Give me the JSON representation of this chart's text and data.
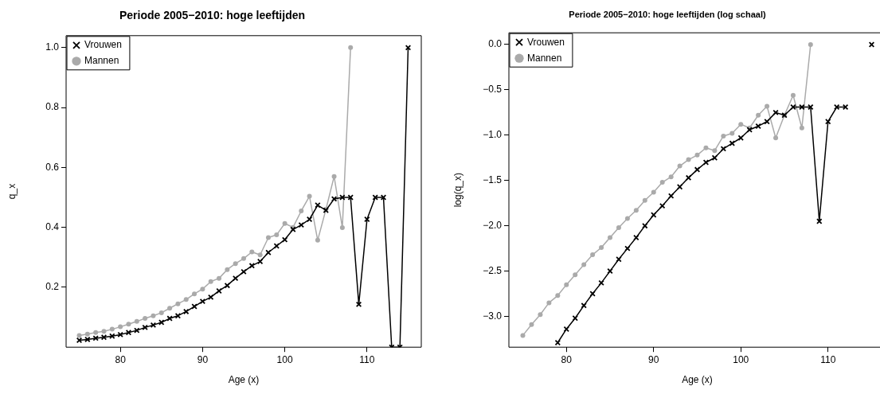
{
  "chart_data": [
    {
      "type": "line",
      "title": "Periode 2005−2010: hoge leeftijden",
      "xlabel": "Age (x)",
      "ylabel": "q_x",
      "xlim": [
        73.4,
        116.6
      ],
      "xticks": [
        80,
        90,
        100,
        110
      ],
      "ylim": [
        0,
        1.04
      ],
      "yticks": [
        0.2,
        0.4,
        0.6,
        0.8,
        {
          "value": 1,
          "label": "1.0"
        }
      ],
      "grid": false,
      "legend": "top left",
      "series": [
        {
          "name": "Mannen",
          "color": "#aaaaaa",
          "marker": "circle",
          "x": [
            75,
            76,
            77,
            78,
            79,
            80,
            81,
            82,
            83,
            84,
            85,
            86,
            87,
            88,
            89,
            90,
            91,
            92,
            93,
            94,
            95,
            96,
            97,
            98,
            99,
            100,
            101,
            102,
            103,
            104,
            105,
            106,
            107,
            108
          ],
          "values": [
            0.039,
            0.044,
            0.049,
            0.053,
            0.06,
            0.068,
            0.077,
            0.086,
            0.096,
            0.105,
            0.115,
            0.13,
            0.145,
            0.159,
            0.178,
            0.194,
            0.219,
            0.23,
            0.259,
            0.279,
            0.296,
            0.318,
            0.308,
            0.366,
            0.375,
            0.413,
            0.4,
            0.455,
            0.504,
            0.357,
            0.46,
            0.57,
            0.399,
            1.0
          ]
        },
        {
          "name": "Vrouwen",
          "color": "#000000",
          "marker": "cross",
          "x": [
            75,
            76,
            77,
            78,
            79,
            80,
            81,
            82,
            83,
            84,
            85,
            86,
            87,
            88,
            89,
            90,
            91,
            92,
            93,
            94,
            95,
            96,
            97,
            98,
            99,
            100,
            101,
            102,
            103,
            104,
            105,
            106,
            107,
            108,
            109,
            110,
            111,
            112,
            113,
            114,
            115
          ],
          "values": [
            0.023,
            0.026,
            0.03,
            0.033,
            0.037,
            0.042,
            0.049,
            0.056,
            0.066,
            0.074,
            0.083,
            0.096,
            0.105,
            0.119,
            0.136,
            0.153,
            0.167,
            0.188,
            0.206,
            0.23,
            0.252,
            0.272,
            0.286,
            0.316,
            0.338,
            0.359,
            0.393,
            0.408,
            0.427,
            0.474,
            0.457,
            0.495,
            0.5,
            0.5,
            0.143,
            0.427,
            0.5,
            0.5,
            0,
            0,
            1.0
          ]
        }
      ]
    },
    {
      "type": "line",
      "title": "Periode 2005−2010: hoge leeftijden (log schaal)",
      "xlabel": "Age (x)",
      "ylabel": "log(q_x)",
      "xlim": [
        73.4,
        116.6
      ],
      "xticks": [
        80,
        90,
        100,
        110
      ],
      "ylim": [
        -3.34,
        0.13
      ],
      "yticks": [
        {
          "value": -3,
          "label": "−3.0"
        },
        {
          "value": -2.5,
          "label": "−2.5"
        },
        {
          "value": -2,
          "label": "−2.0"
        },
        {
          "value": -1.5,
          "label": "−1.5"
        },
        {
          "value": -1,
          "label": "−1.0"
        },
        {
          "value": -0.5,
          "label": "−0.5"
        },
        {
          "value": 0,
          "label": "0.0"
        }
      ],
      "grid": false,
      "legend": "top left",
      "series": [
        {
          "name": "Mannen",
          "color": "#aaaaaa",
          "marker": "circle",
          "x": [
            75,
            76,
            77,
            78,
            79,
            80,
            81,
            82,
            83,
            84,
            85,
            86,
            87,
            88,
            89,
            90,
            91,
            92,
            93,
            94,
            95,
            96,
            97,
            98,
            99,
            100,
            101,
            102,
            103,
            104,
            105,
            106,
            107,
            108
          ],
          "values": [
            -3.21,
            -3.09,
            -2.98,
            -2.85,
            -2.77,
            -2.65,
            -2.54,
            -2.43,
            -2.32,
            -2.24,
            -2.13,
            -2.02,
            -1.92,
            -1.83,
            -1.72,
            -1.63,
            -1.52,
            -1.46,
            -1.34,
            -1.27,
            -1.22,
            -1.14,
            -1.17,
            -1.01,
            -0.98,
            -0.88,
            -0.92,
            -0.78,
            -0.68,
            -1.03,
            -0.78,
            -0.56,
            -0.92,
            0
          ]
        },
        {
          "name": "Vrouwen",
          "color": "#000000",
          "marker": "cross",
          "x": [
            79,
            80,
            81,
            82,
            83,
            84,
            85,
            86,
            87,
            88,
            89,
            90,
            91,
            92,
            93,
            94,
            95,
            96,
            97,
            98,
            99,
            100,
            101,
            102,
            103,
            104,
            105,
            106,
            107,
            108,
            109,
            110,
            111,
            112,
            113,
            114,
            115
          ],
          "values": [
            -3.29,
            -3.14,
            -3.02,
            -2.88,
            -2.75,
            -2.63,
            -2.5,
            -2.37,
            -2.25,
            -2.13,
            -2.0,
            -1.88,
            -1.78,
            -1.67,
            -1.57,
            -1.47,
            -1.38,
            -1.3,
            -1.25,
            -1.15,
            -1.09,
            -1.03,
            -0.94,
            -0.9,
            -0.85,
            -0.75,
            -0.78,
            -0.69,
            -0.69,
            -0.69,
            -1.95,
            -0.85,
            -0.69,
            -0.69,
            null,
            null,
            0
          ]
        }
      ]
    }
  ]
}
